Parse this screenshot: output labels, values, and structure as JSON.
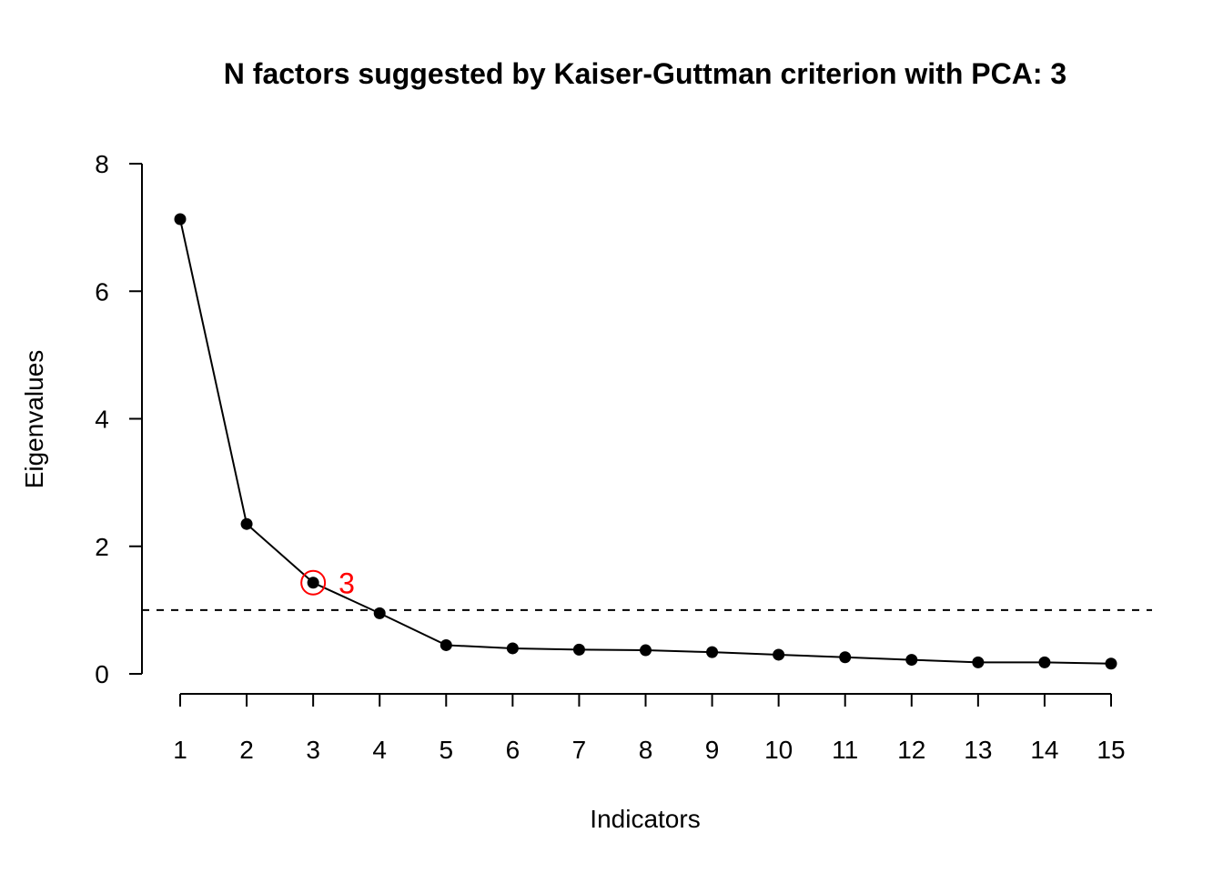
{
  "chart_data": {
    "type": "line",
    "title": "N factors suggested by Kaiser-Guttman criterion with PCA: 3",
    "xlabel": "Indicators",
    "ylabel": "Eigenvalues",
    "x": [
      1,
      2,
      3,
      4,
      5,
      6,
      7,
      8,
      9,
      10,
      11,
      12,
      13,
      14,
      15
    ],
    "x_tick_labels": [
      "1",
      "2",
      "3",
      "4",
      "5",
      "6",
      "7",
      "8",
      "9",
      "10",
      "11",
      "12",
      "13",
      "14",
      "15"
    ],
    "y_ticks": [
      0,
      2,
      4,
      6,
      8
    ],
    "y_tick_labels": [
      "0",
      "2",
      "4",
      "6",
      "8"
    ],
    "ylim": [
      0,
      8
    ],
    "xlim": [
      1,
      15
    ],
    "series": [
      {
        "values": [
          7.13,
          2.35,
          1.43,
          0.95,
          0.45,
          0.4,
          0.38,
          0.37,
          0.34,
          0.3,
          0.26,
          0.22,
          0.18,
          0.18,
          0.16
        ],
        "color": "#000000",
        "marker": "filled-circle"
      }
    ],
    "reference_line": {
      "y": 1,
      "style": "dashed",
      "color": "#000000"
    },
    "highlight": {
      "x": 3,
      "label": "3",
      "color": "#ff0000",
      "marker": "open-circle"
    },
    "grid": false,
    "legend": "none"
  }
}
